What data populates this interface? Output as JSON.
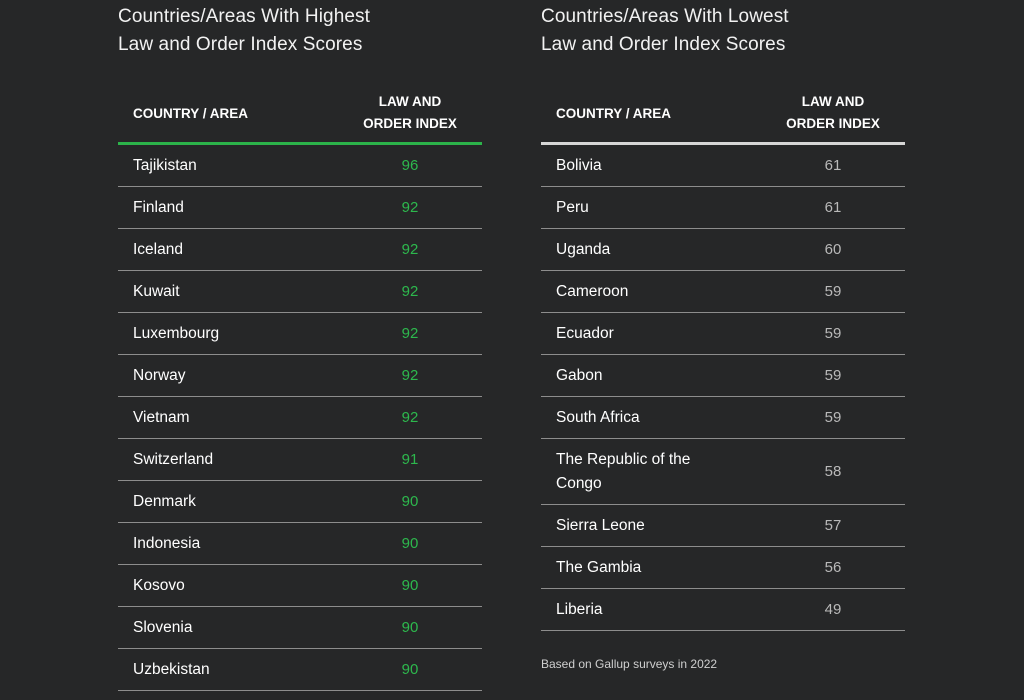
{
  "chart_data": [
    {
      "type": "table",
      "title": "Countries/Areas With Highest Law and Order Index Scores",
      "columns": [
        "COUNTRY / AREA",
        "LAW AND ORDER INDEX"
      ],
      "rows": [
        {
          "country": "Tajikistan",
          "value": 96
        },
        {
          "country": "Finland",
          "value": 92
        },
        {
          "country": "Iceland",
          "value": 92
        },
        {
          "country": "Kuwait",
          "value": 92
        },
        {
          "country": "Luxembourg",
          "value": 92
        },
        {
          "country": "Norway",
          "value": 92
        },
        {
          "country": "Vietnam",
          "value": 92
        },
        {
          "country": "Switzerland",
          "value": 91
        },
        {
          "country": "Denmark",
          "value": 90
        },
        {
          "country": "Indonesia",
          "value": 90
        },
        {
          "country": "Kosovo",
          "value": 90
        },
        {
          "country": "Slovenia",
          "value": 90
        },
        {
          "country": "Uzbekistan",
          "value": 90
        }
      ],
      "value_color": "#2db84d",
      "header_rule_color": "#2cb34a"
    },
    {
      "type": "table",
      "title": "Countries/Areas With Lowest Law and Order Index Scores",
      "columns": [
        "COUNTRY / AREA",
        "LAW AND ORDER INDEX"
      ],
      "rows": [
        {
          "country": "Bolivia",
          "value": 61
        },
        {
          "country": "Peru",
          "value": 61
        },
        {
          "country": "Uganda",
          "value": 60
        },
        {
          "country": "Cameroon",
          "value": 59
        },
        {
          "country": "Ecuador",
          "value": 59
        },
        {
          "country": "Gabon",
          "value": 59
        },
        {
          "country": "South Africa",
          "value": 59
        },
        {
          "country": "The Republic of the Congo",
          "value": 58
        },
        {
          "country": "Sierra Leone",
          "value": 57
        },
        {
          "country": "The Gambia",
          "value": 56
        },
        {
          "country": "Liberia",
          "value": 49
        }
      ],
      "value_color": "#b9b9b9",
      "header_rule_color": "#d6d6d6"
    }
  ],
  "left": {
    "title_line1": "Countries/Areas With Highest",
    "title_line2": "Law and Order Index Scores",
    "col_country": "COUNTRY / AREA",
    "col_index_line1": "LAW AND",
    "col_index_line2": "ORDER INDEX"
  },
  "right": {
    "title_line1": "Countries/Areas With Lowest",
    "title_line2": "Law and Order Index Scores",
    "col_country": "COUNTRY / AREA",
    "col_index_line1": "LAW AND",
    "col_index_line2": "ORDER INDEX"
  },
  "footnote": "Based on Gallup surveys in 2022",
  "colors": {
    "background": "#262728",
    "text": "#ffffff"
  }
}
